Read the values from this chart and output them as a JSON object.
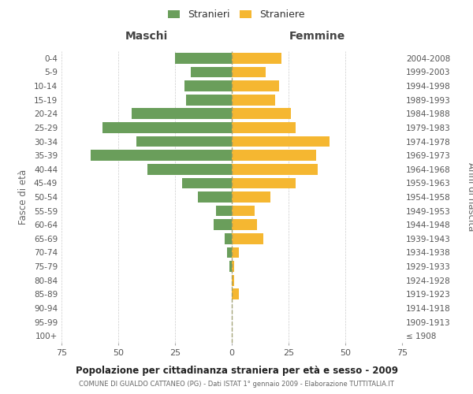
{
  "age_groups": [
    "100+",
    "95-99",
    "90-94",
    "85-89",
    "80-84",
    "75-79",
    "70-74",
    "65-69",
    "60-64",
    "55-59",
    "50-54",
    "45-49",
    "40-44",
    "35-39",
    "30-34",
    "25-29",
    "20-24",
    "15-19",
    "10-14",
    "5-9",
    "0-4"
  ],
  "birth_years": [
    "≤ 1908",
    "1909-1913",
    "1914-1918",
    "1919-1923",
    "1924-1928",
    "1929-1933",
    "1934-1938",
    "1939-1943",
    "1944-1948",
    "1949-1953",
    "1954-1958",
    "1959-1963",
    "1964-1968",
    "1969-1973",
    "1974-1978",
    "1979-1983",
    "1984-1988",
    "1989-1993",
    "1994-1998",
    "1999-2003",
    "2004-2008"
  ],
  "maschi": [
    0,
    0,
    0,
    0,
    0,
    1,
    2,
    3,
    8,
    7,
    15,
    22,
    37,
    62,
    42,
    57,
    44,
    20,
    21,
    18,
    25
  ],
  "femmine": [
    0,
    0,
    0,
    3,
    1,
    1,
    3,
    14,
    11,
    10,
    17,
    28,
    38,
    37,
    43,
    28,
    26,
    19,
    21,
    15,
    22
  ],
  "color_maschi": "#6a9e5b",
  "color_femmine": "#f5b731",
  "background_color": "#ffffff",
  "grid_color": "#cccccc",
  "title": "Popolazione per cittadinanza straniera per età e sesso - 2009",
  "subtitle": "COMUNE DI GUALDO CATTANEO (PG) - Dati ISTAT 1° gennaio 2009 - Elaborazione TUTTITALIA.IT",
  "xlabel_left": "Maschi",
  "xlabel_right": "Femmine",
  "ylabel_left": "Fasce di età",
  "ylabel_right": "Anni di nascita",
  "legend_maschi": "Stranieri",
  "legend_femmine": "Straniere",
  "xlim": 75
}
